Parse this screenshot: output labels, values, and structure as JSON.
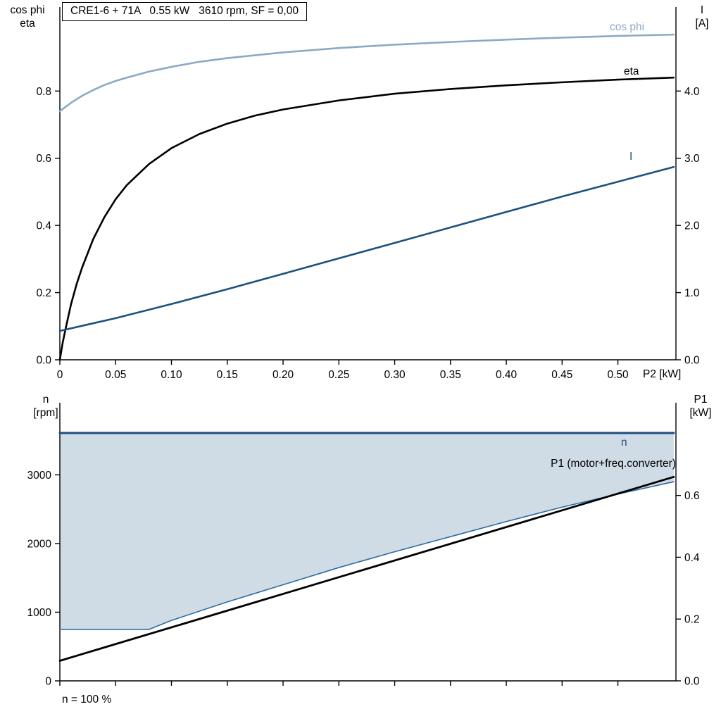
{
  "header": {
    "title": "CRE1-6 + 71A   0.55 kW   3610 rpm, SF = 0,00"
  },
  "colors": {
    "cos_phi": "#8ca9c4",
    "eta": "#000000",
    "current": "#1c5180",
    "speed": "#1c5180",
    "p1": "#000000",
    "band_fill": "#cfdce6",
    "band_edge": "#2f6ca0",
    "axis": "#000000"
  },
  "top_chart": {
    "left_axis_title": [
      "cos phi",
      "eta"
    ],
    "right_axis_title": [
      "I",
      "[A]"
    ],
    "x_axis_label": "P2 [kW]",
    "series_labels": {
      "cos_phi": "cos phi",
      "eta": "eta",
      "current": "I"
    }
  },
  "bottom_chart": {
    "left_axis_title": [
      "n",
      "[rpm]"
    ],
    "right_axis_title": [
      "P1",
      "[kW]"
    ],
    "annotation": "n = 100 %",
    "series_labels": {
      "speed": "n",
      "p1": "P1 (motor+freq.converter)"
    }
  },
  "chart_data": [
    {
      "id": "motor-efficiency-current-chart",
      "type": "line",
      "title": "CRE1-6 + 71A   0.55 kW   3610 rpm, SF = 0,00",
      "xlabel": "P2 [kW]",
      "xlim": [
        0,
        0.552
      ],
      "grid": false,
      "legend_position": "inline-right",
      "xticks": {
        "values": [
          0,
          0.05,
          0.1,
          0.15,
          0.2,
          0.25,
          0.3,
          0.35,
          0.4,
          0.45,
          0.5
        ],
        "labels": [
          "0",
          "0.05",
          "0.10",
          "0.15",
          "0.20",
          "0.25",
          "0.30",
          "0.35",
          "0.40",
          "0.45",
          "0.50"
        ]
      },
      "left_axis": {
        "title": "cos phi / eta",
        "lim": [
          0,
          1.05
        ],
        "ticks": [
          0,
          0.2,
          0.4,
          0.6,
          0.8
        ],
        "labels": [
          "0.0",
          "0.2",
          "0.4",
          "0.6",
          "0.8"
        ]
      },
      "right_axis": {
        "title": "I [A]",
        "lim": [
          0,
          5.25
        ],
        "ticks": [
          0,
          1.0,
          2.0,
          3.0,
          4.0
        ],
        "labels": [
          "0.0",
          "1.0",
          "2.0",
          "3.0",
          "4.0"
        ]
      },
      "series": [
        {
          "name": "cos phi",
          "axis": "left",
          "color": "#8ca9c4",
          "width": 2.6,
          "x": [
            0,
            0.01,
            0.02,
            0.03,
            0.04,
            0.05,
            0.06,
            0.08,
            0.1,
            0.125,
            0.15,
            0.2,
            0.25,
            0.3,
            0.35,
            0.4,
            0.45,
            0.5,
            0.55
          ],
          "y": [
            0.74,
            0.765,
            0.786,
            0.803,
            0.818,
            0.83,
            0.84,
            0.858,
            0.872,
            0.887,
            0.898,
            0.915,
            0.928,
            0.938,
            0.946,
            0.953,
            0.959,
            0.964,
            0.968
          ]
        },
        {
          "name": "eta",
          "axis": "left",
          "color": "#000000",
          "width": 2.6,
          "x": [
            0,
            0.0025,
            0.005,
            0.01,
            0.015,
            0.02,
            0.03,
            0.04,
            0.05,
            0.06,
            0.08,
            0.1,
            0.125,
            0.15,
            0.175,
            0.2,
            0.25,
            0.3,
            0.35,
            0.4,
            0.45,
            0.5,
            0.55
          ],
          "y": [
            0,
            0.05,
            0.09,
            0.165,
            0.225,
            0.275,
            0.36,
            0.425,
            0.478,
            0.52,
            0.583,
            0.63,
            0.672,
            0.703,
            0.727,
            0.745,
            0.772,
            0.792,
            0.806,
            0.817,
            0.826,
            0.834,
            0.84
          ]
        },
        {
          "name": "I",
          "axis": "right",
          "color": "#1c5180",
          "width": 2.6,
          "x": [
            0,
            0.05,
            0.1,
            0.15,
            0.2,
            0.25,
            0.3,
            0.35,
            0.4,
            0.45,
            0.5,
            0.55
          ],
          "y": [
            0.43,
            0.62,
            0.83,
            1.05,
            1.28,
            1.51,
            1.74,
            1.97,
            2.2,
            2.43,
            2.65,
            2.87
          ]
        }
      ]
    },
    {
      "id": "speed-range-power-chart",
      "type": "line",
      "xlabel": "",
      "xlim": [
        0,
        0.552
      ],
      "grid": false,
      "annotation": "n = 100 %",
      "xticks": {
        "values": [
          0,
          0.05,
          0.1,
          0.15,
          0.2,
          0.25,
          0.3,
          0.35,
          0.4,
          0.45,
          0.5
        ],
        "labels": [
          "",
          "",
          "",
          "",
          "",
          "",
          "",
          "",
          "",
          "",
          ""
        ]
      },
      "left_axis": {
        "title": "n [rpm]",
        "lim": [
          0,
          4050
        ],
        "ticks": [
          0,
          1000,
          2000,
          3000
        ],
        "labels": [
          "0",
          "1000",
          "2000",
          "3000"
        ]
      },
      "right_axis": {
        "title": "P1 [kW]",
        "lim": [
          0,
          0.9
        ],
        "ticks": [
          0,
          0.2,
          0.4,
          0.6
        ],
        "labels": [
          "0.0",
          "0.2",
          "0.4",
          "0.6"
        ]
      },
      "band": {
        "fill": "#cfdce6",
        "upper_value": 3610,
        "lower_series": "speed range lower limit",
        "axis": "left"
      },
      "series": [
        {
          "name": "speed range lower limit",
          "axis": "left",
          "color": "#2f6ca0",
          "width": 1.6,
          "x": [
            0,
            0.08,
            0.1,
            0.15,
            0.2,
            0.25,
            0.3,
            0.35,
            0.4,
            0.45,
            0.5,
            0.55
          ],
          "y": [
            750,
            750,
            880,
            1150,
            1400,
            1650,
            1880,
            2100,
            2320,
            2530,
            2720,
            2900
          ]
        },
        {
          "name": "n",
          "axis": "left",
          "color": "#1c5180",
          "width": 3.2,
          "x": [
            0,
            0.55
          ],
          "y": [
            3610,
            3610
          ]
        },
        {
          "name": "P1 (motor+freq.converter)",
          "axis": "right",
          "color": "#000000",
          "width": 2.8,
          "x": [
            0,
            0.275,
            0.55
          ],
          "y": [
            0.065,
            0.3625,
            0.66
          ]
        }
      ]
    }
  ]
}
